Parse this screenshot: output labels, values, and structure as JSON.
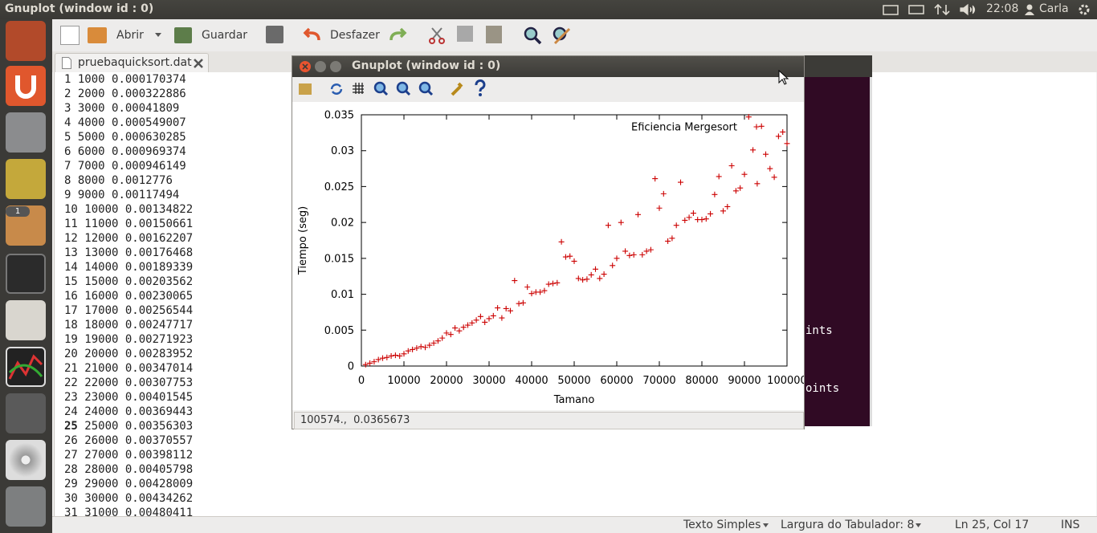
{
  "top_bar": {
    "title": "Gnuplot (window id : 0)",
    "clock": "22:08",
    "user": "Carla"
  },
  "launcher": {
    "badge": "1"
  },
  "toolbar": {
    "open": "Abrir",
    "save": "Guardar",
    "undo": "Desfazer"
  },
  "tab": {
    "title": "pruebaquicksort.dat"
  },
  "editor": {
    "current_line": 25,
    "lines": [
      {
        "number": "1",
        "text": "1000 0.000170374"
      },
      {
        "number": "2",
        "text": "2000 0.000322886"
      },
      {
        "number": "3",
        "text": "3000 0.00041809"
      },
      {
        "number": "4",
        "text": "4000 0.000549007"
      },
      {
        "number": "5",
        "text": "5000 0.000630285"
      },
      {
        "number": "6",
        "text": "6000 0.000969374"
      },
      {
        "number": "7",
        "text": "7000 0.000946149"
      },
      {
        "number": "8",
        "text": "8000 0.0012776"
      },
      {
        "number": "9",
        "text": "9000 0.00117494"
      },
      {
        "number": "10",
        "text": "10000 0.00134822"
      },
      {
        "number": "11",
        "text": "11000 0.00150661"
      },
      {
        "number": "12",
        "text": "12000 0.00162207"
      },
      {
        "number": "13",
        "text": "13000 0.00176468"
      },
      {
        "number": "14",
        "text": "14000 0.00189339"
      },
      {
        "number": "15",
        "text": "15000 0.00203562"
      },
      {
        "number": "16",
        "text": "16000 0.00230065"
      },
      {
        "number": "17",
        "text": "17000 0.00256544"
      },
      {
        "number": "18",
        "text": "18000 0.00247717"
      },
      {
        "number": "19",
        "text": "19000 0.00271923"
      },
      {
        "number": "20",
        "text": "20000 0.00283952"
      },
      {
        "number": "21",
        "text": "21000 0.00347014"
      },
      {
        "number": "22",
        "text": "22000 0.00307753"
      },
      {
        "number": "23",
        "text": "23000 0.00401545"
      },
      {
        "number": "24",
        "text": "24000 0.00369443"
      },
      {
        "number": "25",
        "text": "25000 0.00356303"
      },
      {
        "number": "26",
        "text": "26000 0.00370557"
      },
      {
        "number": "27",
        "text": "27000 0.00398112"
      },
      {
        "number": "28",
        "text": "28000 0.00405798"
      },
      {
        "number": "29",
        "text": "29000 0.00428009"
      },
      {
        "number": "30",
        "text": "30000 0.00434262"
      },
      {
        "number": "31",
        "text": "31000 0.00480411"
      }
    ]
  },
  "status_bar": {
    "language": "Texto Simples",
    "tab_width": "Largura do Tabulador: 8",
    "position": "Ln 25, Col 17",
    "mode": "INS"
  },
  "terminal": {
    "fragments": [
      "ints",
      "oints"
    ]
  },
  "gnuplot": {
    "title": "Gnuplot (window id : 0)",
    "status": "100574.,  0.0365673"
  },
  "chart_data": {
    "type": "scatter",
    "xlabel": "Tamano",
    "ylabel": "Tiempo (seg)",
    "legend": "top-right",
    "marker": "+",
    "x": [
      1000,
      2000,
      3000,
      4000,
      5000,
      6000,
      7000,
      8000,
      9000,
      10000,
      11000,
      12000,
      13000,
      14000,
      15000,
      16000,
      17000,
      18000,
      19000,
      20000,
      21000,
      22000,
      23000,
      24000,
      25000,
      26000,
      27000,
      28000,
      29000,
      30000,
      31000,
      32000,
      33000,
      34000,
      35000,
      36000,
      37000,
      38000,
      39000,
      40000,
      41000,
      42000,
      43000,
      44000,
      45000,
      46000,
      47000,
      48000,
      49000,
      50000,
      51000,
      52000,
      53000,
      54000,
      55000,
      56000,
      57000,
      58000,
      59000,
      60000,
      61000,
      62000,
      63000,
      64000,
      65000,
      66000,
      67000,
      68000,
      69000,
      70000,
      71000,
      72000,
      73000,
      74000,
      75000,
      76000,
      77000,
      78000,
      79000,
      80000,
      81000,
      82000,
      83000,
      84000,
      85000,
      86000,
      87000,
      88000,
      89000,
      90000,
      91000,
      92000,
      93000,
      94000,
      95000,
      96000,
      97000,
      98000,
      99000,
      100000
    ],
    "series": [
      {
        "name": "Eficiencia Mergesort",
        "color": "#cc0000",
        "values": [
          0.0002,
          0.0004,
          0.0006,
          0.0009,
          0.0011,
          0.0012,
          0.0014,
          0.0015,
          0.0014,
          0.0017,
          0.0021,
          0.0023,
          0.0025,
          0.0027,
          0.0026,
          0.0029,
          0.0032,
          0.0035,
          0.0039,
          0.0046,
          0.0044,
          0.0053,
          0.0049,
          0.0054,
          0.0057,
          0.006,
          0.0064,
          0.0069,
          0.0061,
          0.0066,
          0.007,
          0.0081,
          0.0067,
          0.008,
          0.0077,
          0.0119,
          0.0087,
          0.0088,
          0.011,
          0.0101,
          0.0103,
          0.0103,
          0.0105,
          0.0114,
          0.0115,
          0.0116,
          0.0173,
          0.0152,
          0.0153,
          0.0146,
          0.0122,
          0.012,
          0.0121,
          0.0127,
          0.0135,
          0.0122,
          0.0128,
          0.0196,
          0.014,
          0.015,
          0.02,
          0.016,
          0.0154,
          0.0155,
          0.0211,
          0.0155,
          0.016,
          0.0162,
          0.0261,
          0.022,
          0.024,
          0.0174,
          0.0178,
          0.0196,
          0.0256,
          0.0203,
          0.0207,
          0.0213,
          0.0204,
          0.0204,
          0.0205,
          0.0212,
          0.0239,
          0.0264,
          0.0216,
          0.0222,
          0.0279,
          0.0244,
          0.0248,
          0.0267,
          0.0347,
          0.0301,
          0.0254,
          0.0334,
          0.0295,
          0.0275,
          0.0263,
          0.032,
          0.0326,
          0.031
        ]
      }
    ],
    "xlim": [
      0,
      100000
    ],
    "ylim": [
      0,
      0.035
    ],
    "xticks": [
      0,
      10000,
      20000,
      30000,
      40000,
      50000,
      60000,
      70000,
      80000,
      90000,
      100000
    ],
    "yticks": [
      0,
      0.005,
      0.01,
      0.015,
      0.02,
      0.025,
      0.03,
      0.035
    ]
  }
}
